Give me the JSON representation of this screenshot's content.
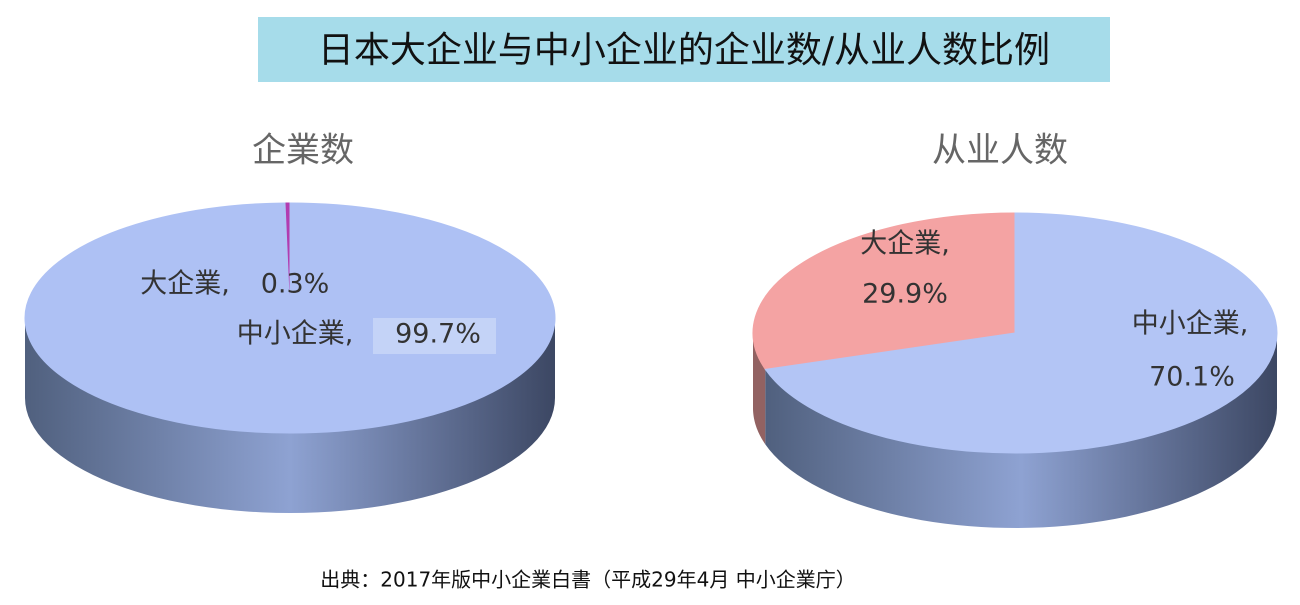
{
  "title": "日本大企业与中小企业的企业数/从业人数比例",
  "source": "出典：2017年版中小企業白書（平成29年4月 中小企業庁）",
  "chart_data": [
    {
      "type": "pie",
      "title": "企業数",
      "categories": [
        "大企業,",
        "中小企業,"
      ],
      "values": [
        0.3,
        99.7
      ],
      "value_labels": [
        "0.3%",
        "99.7%"
      ],
      "colors": [
        "#b23cb0",
        "#aec1f4"
      ]
    },
    {
      "type": "pie",
      "title": "从业人数",
      "categories": [
        "大企業,",
        "中小企業,"
      ],
      "values": [
        29.9,
        70.1
      ],
      "value_labels": [
        "29.9%",
        "70.1%"
      ],
      "colors": [
        "#f4a3a3",
        "#b3c5f5"
      ]
    }
  ]
}
